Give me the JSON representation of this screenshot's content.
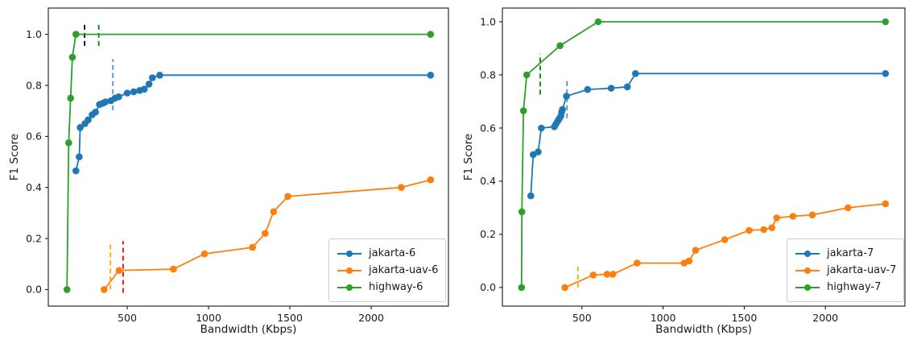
{
  "figure": {
    "background": "#ffffff"
  },
  "chart_data": [
    {
      "type": "line",
      "position": "left",
      "xlabel": "Bandwidth (Kbps)",
      "ylabel": "F1 Score",
      "xlim": [
        15,
        2475
      ],
      "ylim": [
        -0.065,
        1.103
      ],
      "grid": false,
      "legend_position": "lower right",
      "xticks": [
        {
          "v": 500,
          "label": "500"
        },
        {
          "v": 1000,
          "label": "1000"
        },
        {
          "v": 1500,
          "label": "1500"
        },
        {
          "v": 2000,
          "label": "2000"
        }
      ],
      "yticks": [
        {
          "v": 0,
          "label": "0.0"
        },
        {
          "v": 0.2,
          "label": "0.2"
        },
        {
          "v": 0.4,
          "label": "0.4"
        },
        {
          "v": 0.6,
          "label": "0.6"
        },
        {
          "v": 0.8,
          "label": "0.8"
        },
        {
          "v": 1,
          "label": "1.0"
        }
      ],
      "series": [
        {
          "name": "jakarta-6",
          "color": "#1f77b4",
          "points": [
            [
              185,
              0.465
            ],
            [
              205,
              0.52
            ],
            [
              211,
              0.635
            ],
            [
              240,
              0.65
            ],
            [
              260,
              0.665
            ],
            [
              285,
              0.685
            ],
            [
              305,
              0.695
            ],
            [
              330,
              0.725
            ],
            [
              350,
              0.73
            ],
            [
              366,
              0.735
            ],
            [
              400,
              0.74
            ],
            [
              425,
              0.75
            ],
            [
              448,
              0.755
            ],
            [
              500,
              0.77
            ],
            [
              540,
              0.775
            ],
            [
              577,
              0.78
            ],
            [
              605,
              0.785
            ],
            [
              634,
              0.805
            ],
            [
              655,
              0.83
            ],
            [
              700,
              0.84
            ],
            [
              2365,
              0.84
            ]
          ]
        },
        {
          "name": "jakarta-uav-6",
          "color": "#ff7f0e",
          "points": [
            [
              358,
              0.0
            ],
            [
              450,
              0.075
            ],
            [
              784,
              0.08
            ],
            [
              975,
              0.14
            ],
            [
              1270,
              0.165
            ],
            [
              1348,
              0.22
            ],
            [
              1400,
              0.305
            ],
            [
              1488,
              0.365
            ],
            [
              2185,
              0.4
            ],
            [
              2365,
              0.43
            ]
          ]
        },
        {
          "name": "highway-6",
          "color": "#2ca02c",
          "points": [
            [
              130,
              0.0
            ],
            [
              140,
              0.575
            ],
            [
              152,
              0.75
            ],
            [
              163,
              0.91
            ],
            [
              185,
              1.0
            ],
            [
              2365,
              1.0
            ]
          ]
        }
      ],
      "vlines": [
        {
          "x": 238,
          "color": "#000000",
          "y0": 0.955,
          "y1": 1.048
        },
        {
          "x": 325,
          "color": "#008000",
          "y0": 0.955,
          "y1": 1.043
        },
        {
          "x": 412,
          "color": "#4a90d2",
          "y0": 0.703,
          "y1": 0.903
        },
        {
          "x": 397,
          "color": "#ffa500",
          "y0": 0.0,
          "y1": 0.19
        },
        {
          "x": 475,
          "color": "#ff0000",
          "y0": -0.013,
          "y1": 0.19
        }
      ],
      "legend": {
        "items": [
          {
            "label": "jakarta-6",
            "color": "#1f77b4"
          },
          {
            "label": "jakarta-uav-6",
            "color": "#ff7f0e"
          },
          {
            "label": "highway-6",
            "color": "#2ca02c"
          }
        ]
      }
    },
    {
      "type": "line",
      "position": "right",
      "xlabel": "Bandwidth (Kbps)",
      "ylabel": "F1 Score",
      "xlim": [
        10,
        2490
      ],
      "ylim": [
        -0.07,
        1.0515
      ],
      "grid": false,
      "legend_position": "lower right",
      "xticks": [
        {
          "v": 500,
          "label": "500"
        },
        {
          "v": 1000,
          "label": "1000"
        },
        {
          "v": 1500,
          "label": "1500"
        },
        {
          "v": 2000,
          "label": "2000"
        }
      ],
      "yticks": [
        {
          "v": 0,
          "label": "0.0"
        },
        {
          "v": 0.2,
          "label": "0.2"
        },
        {
          "v": 0.4,
          "label": "0.4"
        },
        {
          "v": 0.6,
          "label": "0.6"
        },
        {
          "v": 0.8,
          "label": "0.8"
        },
        {
          "v": 1,
          "label": "1.0"
        }
      ],
      "series": [
        {
          "name": "jakarta-7",
          "color": "#1f77b4",
          "points": [
            [
              185,
              0.345
            ],
            [
              200,
              0.5
            ],
            [
              230,
              0.51
            ],
            [
              250,
              0.6
            ],
            [
              330,
              0.605
            ],
            [
              340,
              0.615
            ],
            [
              350,
              0.625
            ],
            [
              360,
              0.635
            ],
            [
              370,
              0.645
            ],
            [
              375,
              0.66
            ],
            [
              380,
              0.67
            ],
            [
              405,
              0.72
            ],
            [
              535,
              0.745
            ],
            [
              680,
              0.75
            ],
            [
              780,
              0.755
            ],
            [
              830,
              0.805
            ],
            [
              2370,
              0.805
            ]
          ]
        },
        {
          "name": "jakarta-uav-7",
          "color": "#ff7f0e",
          "points": [
            [
              395,
              0.0
            ],
            [
              570,
              0.047
            ],
            [
              655,
              0.05
            ],
            [
              690,
              0.05
            ],
            [
              840,
              0.092
            ],
            [
              1130,
              0.092
            ],
            [
              1160,
              0.1
            ],
            [
              1200,
              0.14
            ],
            [
              1380,
              0.18
            ],
            [
              1530,
              0.215
            ],
            [
              1620,
              0.218
            ],
            [
              1670,
              0.225
            ],
            [
              1700,
              0.262
            ],
            [
              1800,
              0.268
            ],
            [
              1920,
              0.273
            ],
            [
              2140,
              0.3
            ],
            [
              2370,
              0.315
            ]
          ]
        },
        {
          "name": "highway-7",
          "color": "#2ca02c",
          "points": [
            [
              128,
              0.0
            ],
            [
              130,
              0.285
            ],
            [
              140,
              0.665
            ],
            [
              160,
              0.8
            ],
            [
              365,
              0.91
            ],
            [
              600,
              1.0
            ],
            [
              2370,
              1.0
            ]
          ]
        }
      ],
      "vlines": [
        {
          "x": 243,
          "color": "#008000",
          "y0": 0.726,
          "y1": 0.879
        },
        {
          "x": 408,
          "color": "#4a90d2",
          "y0": 0.637,
          "y1": 0.78
        },
        {
          "x": 475,
          "color": "#ffa500",
          "y0": 0.0,
          "y1": 0.085
        }
      ],
      "legend": {
        "items": [
          {
            "label": "jakarta-7",
            "color": "#1f77b4"
          },
          {
            "label": "jakarta-uav-7",
            "color": "#ff7f0e"
          },
          {
            "label": "highway-7",
            "color": "#2ca02c"
          }
        ]
      }
    }
  ]
}
